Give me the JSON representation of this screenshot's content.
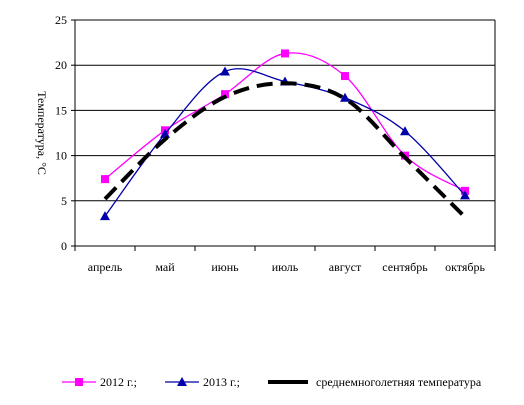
{
  "chart_data": {
    "type": "line",
    "title": "",
    "xlabel": "",
    "ylabel": "Температура, °С",
    "ylim": [
      0,
      25
    ],
    "yticks": [
      0,
      5,
      10,
      15,
      20,
      25
    ],
    "grid": "horizontal",
    "legend_position": "bottom",
    "categories": [
      "апрель",
      "май",
      "июнь",
      "июль",
      "август",
      "сентябрь",
      "октябрь"
    ],
    "series": [
      {
        "name": "2012 г.;",
        "color": "#ff00ff",
        "marker": "square",
        "style": "smooth",
        "values": [
          7.4,
          12.8,
          16.8,
          21.3,
          18.8,
          10.0,
          6.1
        ]
      },
      {
        "name": "2013 г.;",
        "color": "#0000aa",
        "marker": "triangle",
        "style": "smooth",
        "values": [
          3.3,
          12.4,
          19.3,
          18.2,
          16.4,
          12.7,
          5.6
        ]
      },
      {
        "name": "среднемноголетняя температура",
        "color": "#000000",
        "marker": "none",
        "style": "dashed-thick",
        "values": [
          5.2,
          11.8,
          16.5,
          18.0,
          16.3,
          9.8,
          3.2
        ]
      }
    ]
  }
}
